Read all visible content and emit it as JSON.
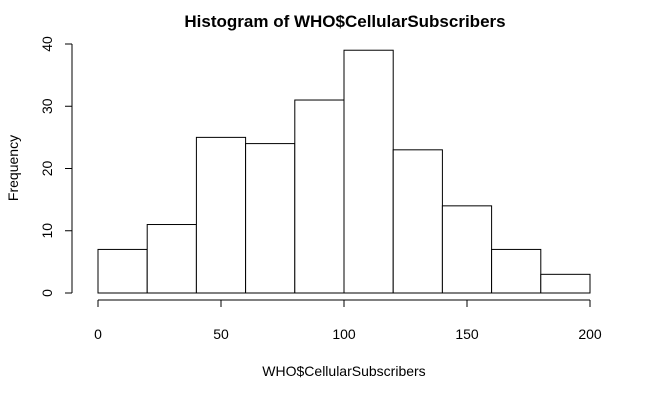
{
  "chart_data": {
    "type": "bar",
    "title": "Histogram of WHO$CellularSubscribers",
    "xlabel": "WHO$CellularSubscribers",
    "ylabel": "Frequency",
    "bins": [
      {
        "from": 0,
        "to": 20,
        "count": 7
      },
      {
        "from": 20,
        "to": 40,
        "count": 11
      },
      {
        "from": 40,
        "to": 60,
        "count": 25
      },
      {
        "from": 60,
        "to": 80,
        "count": 24
      },
      {
        "from": 80,
        "to": 100,
        "count": 31
      },
      {
        "from": 100,
        "to": 120,
        "count": 39
      },
      {
        "from": 120,
        "to": 140,
        "count": 23
      },
      {
        "from": 140,
        "to": 160,
        "count": 14
      },
      {
        "from": 160,
        "to": 180,
        "count": 7
      },
      {
        "from": 180,
        "to": 200,
        "count": 3
      }
    ],
    "xlim": [
      0,
      200
    ],
    "ylim": [
      0,
      40
    ],
    "x_ticks": [
      0,
      50,
      100,
      150,
      200
    ],
    "y_ticks": [
      0,
      10,
      20,
      30,
      40
    ],
    "grid": false,
    "legend": "none",
    "bar_fill": "#ffffff",
    "bar_stroke": "#000000"
  }
}
